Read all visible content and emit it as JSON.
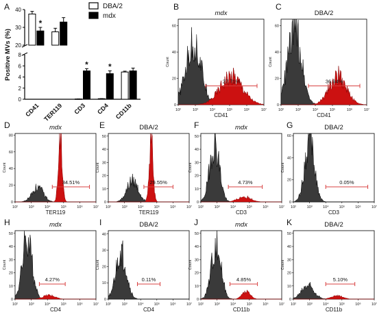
{
  "colors": {
    "control": "#3a3a3a",
    "mdx": "#cc1111",
    "gate": "#d84040",
    "axis": "#000000"
  },
  "chart_data": [
    {
      "panel": "A",
      "type": "bar",
      "ylabel": "Positive MVs (%)",
      "broken_axis": true,
      "ylim_lower": [
        0,
        8
      ],
      "ylim_upper": [
        20,
        40
      ],
      "yticks_lower": [
        "0",
        "2",
        "4",
        "6",
        "8"
      ],
      "yticks_upper": [
        "20",
        "30",
        "40"
      ],
      "categories": [
        "CD41",
        "TER119",
        "CD3",
        "CD4",
        "CD11b"
      ],
      "legend_position": "top-right",
      "series": [
        {
          "name": "DBA/2",
          "style": "open",
          "values": [
            37.5,
            27.5,
            0.05,
            0.1,
            4.9
          ],
          "errors": [
            1.5,
            2.0,
            0.02,
            0.02,
            0.15
          ]
        },
        {
          "name": "mdx",
          "style": "filled",
          "values": [
            28.0,
            33.0,
            5.1,
            4.6,
            5.1
          ],
          "errors": [
            2.0,
            2.5,
            0.4,
            0.5,
            0.5
          ]
        }
      ],
      "significance": [
        "*",
        "",
        "*",
        "*",
        ""
      ]
    },
    {
      "panel": "B",
      "type": "histogram",
      "title": "mdx",
      "title_italic": true,
      "xlabel": "CD41",
      "ylabel": "Count",
      "yticks": [
        "0",
        "20",
        "40",
        "60"
      ],
      "ymax": 65,
      "gate_label": "27.71%",
      "gate": [
        3.6,
        6.6
      ],
      "populations": [
        {
          "kind": "control",
          "center": 2.9,
          "width": 0.45,
          "peak": 46
        },
        {
          "kind": "mdx",
          "center": 5.1,
          "width": 0.65,
          "peak": 22
        }
      ]
    },
    {
      "panel": "C",
      "type": "histogram",
      "title": "DBA/2",
      "title_italic": false,
      "xlabel": "CD41",
      "ylabel": "Count",
      "yticks": [
        "0",
        "20",
        "40",
        "60"
      ],
      "ymax": 65,
      "gate_label": "36.94%",
      "gate": [
        3.6,
        6.6
      ],
      "populations": [
        {
          "kind": "control",
          "center": 2.8,
          "width": 0.4,
          "peak": 58
        },
        {
          "kind": "mdx",
          "center": 5.3,
          "width": 0.5,
          "peak": 22
        }
      ]
    },
    {
      "panel": "D",
      "type": "histogram",
      "title": "mdx",
      "title_italic": true,
      "xlabel": "TER119",
      "ylabel": "Count",
      "yticks": [
        "0",
        "20",
        "40",
        "60",
        "80"
      ],
      "ymax": 82,
      "gate_label": "34.51%",
      "gate": [
        4.3,
        6.6
      ],
      "populations": [
        {
          "kind": "control",
          "center": 3.4,
          "width": 0.35,
          "peak": 17
        },
        {
          "kind": "mdx",
          "center": 4.8,
          "width": 0.12,
          "peak": 78
        }
      ]
    },
    {
      "panel": "E",
      "type": "histogram",
      "title": "DBA/2",
      "title_italic": false,
      "xlabel": "TER119",
      "ylabel": "Count",
      "yticks": [
        "0",
        "10",
        "20",
        "30",
        "40",
        "50"
      ],
      "ymax": 52,
      "gate_label": "29.55%",
      "gate": [
        4.2,
        6.0
      ],
      "populations": [
        {
          "kind": "control",
          "center": 3.5,
          "width": 0.35,
          "peak": 16
        },
        {
          "kind": "mdx",
          "center": 4.65,
          "width": 0.12,
          "peak": 47
        }
      ]
    },
    {
      "panel": "F",
      "type": "histogram",
      "title": "mdx",
      "title_italic": true,
      "xlabel": "CD3",
      "ylabel": "Count",
      "yticks": [
        "0",
        "10",
        "20",
        "30",
        "40",
        "50"
      ],
      "ymax": 52,
      "gate_label": "4.73%",
      "gate": [
        3.7,
        5.8
      ],
      "populations": [
        {
          "kind": "control",
          "center": 2.85,
          "width": 0.3,
          "peak": 44
        },
        {
          "kind": "mdx",
          "center": 4.7,
          "width": 0.4,
          "peak": 4
        }
      ]
    },
    {
      "panel": "G",
      "type": "histogram",
      "title": "DBA/2",
      "title_italic": false,
      "xlabel": "CD3",
      "ylabel": "Count",
      "yticks": [
        "0",
        "20",
        "40",
        "60"
      ],
      "ymax": 62,
      "gate_label": "0.05%",
      "gate": [
        4.0,
        6.6
      ],
      "populations": [
        {
          "kind": "control",
          "center": 3.0,
          "width": 0.3,
          "peak": 55
        }
      ]
    },
    {
      "panel": "H",
      "type": "histogram",
      "title": "mdx",
      "title_italic": true,
      "xlabel": "CD4",
      "ylabel": "Count",
      "yticks": [
        "0",
        "10",
        "20",
        "30",
        "40",
        "50"
      ],
      "ymax": 52,
      "gate_label": "4.27%",
      "gate": [
        3.5,
        5.1
      ],
      "populations": [
        {
          "kind": "control",
          "center": 2.75,
          "width": 0.3,
          "peak": 46
        },
        {
          "kind": "mdx",
          "center": 4.1,
          "width": 0.35,
          "peak": 3
        }
      ]
    },
    {
      "panel": "I",
      "type": "histogram",
      "title": "DBA/2",
      "title_italic": false,
      "xlabel": "CD4",
      "ylabel": "Count",
      "yticks": [
        "0",
        "10",
        "20",
        "30",
        "40"
      ],
      "ymax": 42,
      "gate_label": "0.11%",
      "gate": [
        3.8,
        5.2
      ],
      "populations": [
        {
          "kind": "control",
          "center": 2.8,
          "width": 0.32,
          "peak": 28
        }
      ]
    },
    {
      "panel": "J",
      "type": "histogram",
      "title": "mdx",
      "title_italic": true,
      "xlabel": "CD11b",
      "ylabel": "Count",
      "yticks": [
        "0",
        "10",
        "20",
        "30",
        "40",
        "50"
      ],
      "ymax": 52,
      "gate_label": "4.85%",
      "gate": [
        3.8,
        5.5
      ],
      "populations": [
        {
          "kind": "control",
          "center": 2.95,
          "width": 0.3,
          "peak": 42
        },
        {
          "kind": "mdx",
          "center": 4.8,
          "width": 0.25,
          "peak": 6
        }
      ]
    },
    {
      "panel": "K",
      "type": "histogram",
      "title": "DBA/2",
      "title_italic": false,
      "xlabel": "CD11b",
      "ylabel": "Count",
      "yticks": [
        "0",
        "10",
        "20",
        "30",
        "40",
        "50"
      ],
      "ymax": 52,
      "gate_label": "5.10%",
      "gate": [
        4.0,
        5.8
      ],
      "populations": [
        {
          "kind": "control",
          "center": 2.9,
          "width": 0.38,
          "peak": 11
        },
        {
          "kind": "mdx",
          "center": 4.7,
          "width": 0.35,
          "peak": 2.5
        }
      ]
    }
  ],
  "histogram_xticks": [
    "10²",
    "10³",
    "10⁴",
    "10⁵",
    "10⁶",
    "10⁷"
  ]
}
